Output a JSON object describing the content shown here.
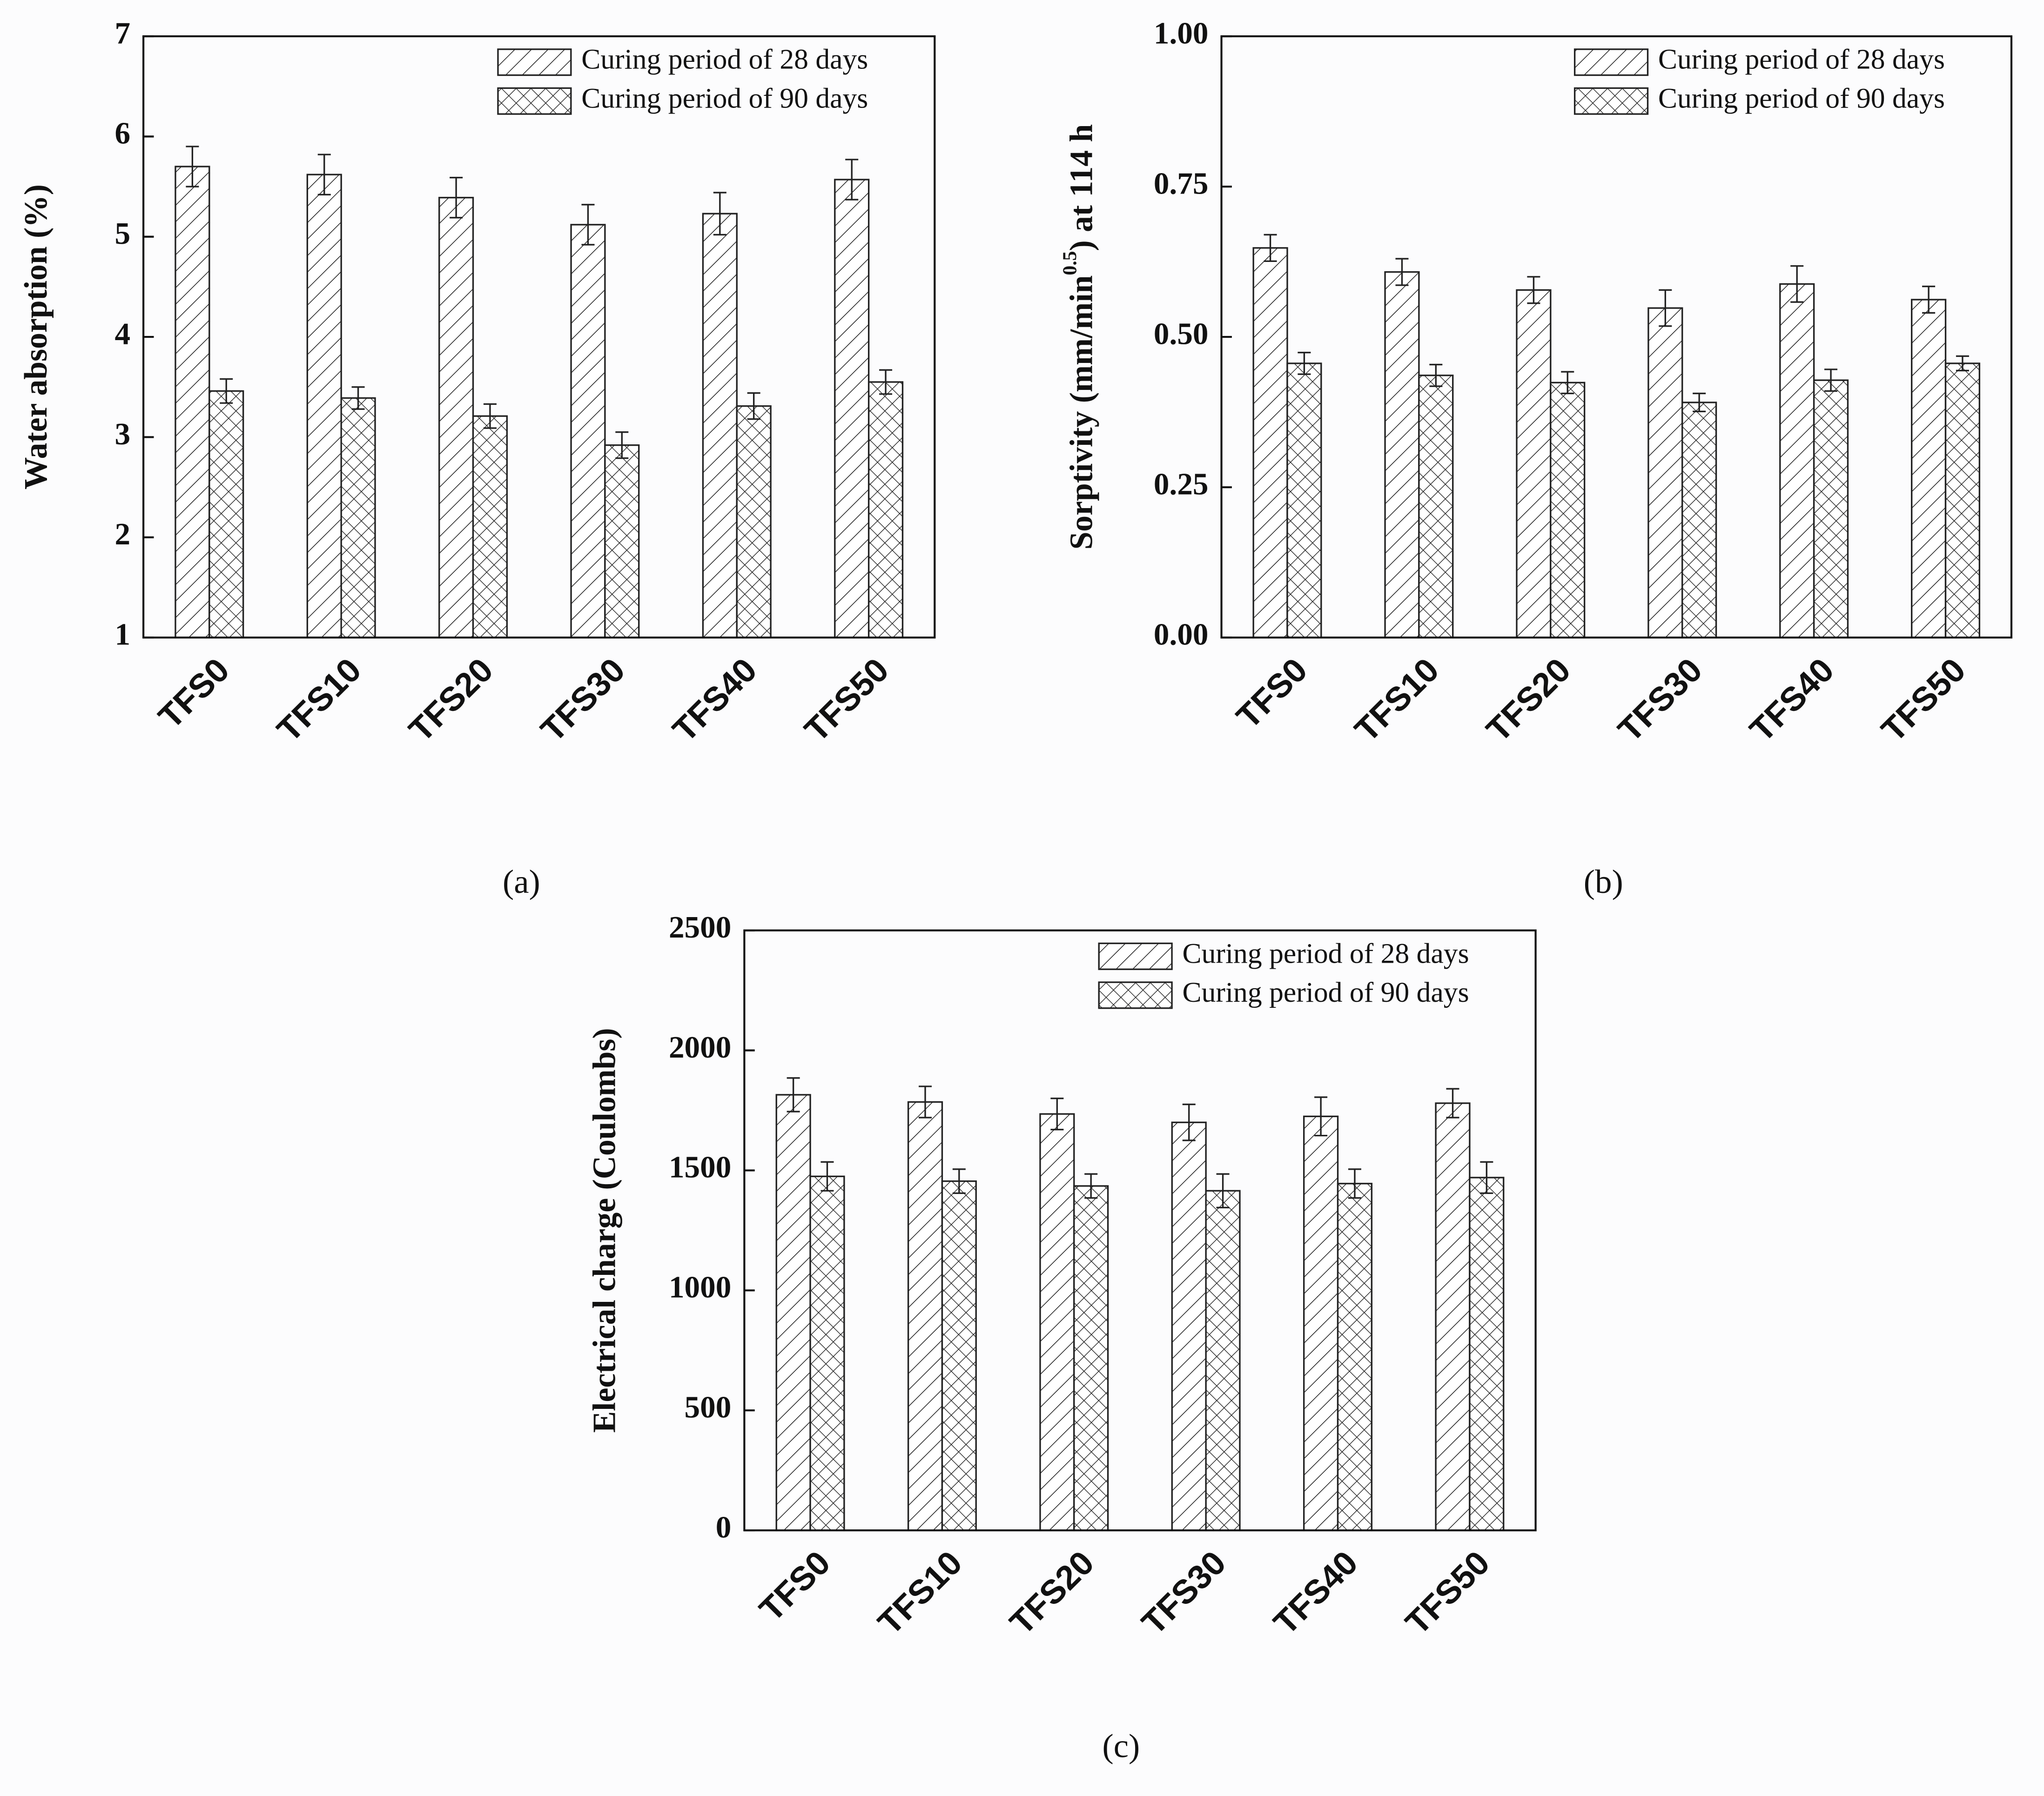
{
  "chart_data": [
    {
      "type": "bar",
      "label": "(a)",
      "ylabel": "Water absorption (%)",
      "categories": [
        "TFS0",
        "TFS10",
        "TFS20",
        "TFS30",
        "TFS40",
        "TFS50"
      ],
      "series": [
        {
          "name": "Curing period of 28 days",
          "pattern": "hatch",
          "color": "#222222",
          "values": [
            5.7,
            5.62,
            5.39,
            5.12,
            5.23,
            5.57
          ],
          "errors": [
            0.2,
            0.2,
            0.2,
            0.2,
            0.21,
            0.2
          ]
        },
        {
          "name": "Curing period of 90 days",
          "pattern": "cross",
          "color": "#222222",
          "values": [
            3.46,
            3.39,
            3.21,
            2.92,
            3.31,
            3.55
          ],
          "errors": [
            0.12,
            0.11,
            0.12,
            0.13,
            0.13,
            0.12
          ]
        }
      ],
      "ylim": [
        1,
        7
      ],
      "yticks": [
        1,
        2,
        3,
        4,
        5,
        6,
        7
      ],
      "legend": "upper right"
    },
    {
      "type": "bar",
      "label": "(b)",
      "ylabel": "Sorptivity (mm/min",
      "ylabel_sup": "0.5",
      "ylabel_end": ") at 114 h",
      "categories": [
        "TFS0",
        "TFS10",
        "TFS20",
        "TFS30",
        "TFS40",
        "TFS50"
      ],
      "series": [
        {
          "name": "Curing period of 28 days",
          "pattern": "hatch",
          "color": "#222222",
          "values": [
            0.648,
            0.608,
            0.578,
            0.548,
            0.588,
            0.562
          ],
          "errors": [
            0.022,
            0.022,
            0.022,
            0.03,
            0.03,
            0.022
          ]
        },
        {
          "name": "Curing period of 90 days",
          "pattern": "cross",
          "color": "#222222",
          "values": [
            0.456,
            0.436,
            0.424,
            0.391,
            0.428,
            0.456
          ],
          "errors": [
            0.018,
            0.018,
            0.018,
            0.015,
            0.018,
            0.012
          ]
        }
      ],
      "ylim": [
        0,
        1
      ],
      "yticks": [
        {
          "value": 0,
          "label": "0.00"
        },
        {
          "value": 0.25,
          "label": "0.25"
        },
        {
          "value": 0.5,
          "label": "0.50"
        },
        {
          "value": 0.75,
          "label": "0.75"
        },
        {
          "value": 1,
          "label": "1.00"
        }
      ],
      "legend": "upper right"
    },
    {
      "type": "bar",
      "label": "(c)",
      "ylabel": "Electrical charge (Coulombs)",
      "categories": [
        "TFS0",
        "TFS10",
        "TFS20",
        "TFS30",
        "TFS40",
        "TFS50"
      ],
      "series": [
        {
          "name": "Curing period of 28 days",
          "pattern": "hatch",
          "color": "#222222",
          "values": [
            1815,
            1785,
            1735,
            1700,
            1725,
            1780
          ],
          "errors": [
            70,
            65,
            65,
            75,
            80,
            60
          ]
        },
        {
          "name": "Curing period of 90 days",
          "pattern": "cross",
          "color": "#222222",
          "values": [
            1475,
            1455,
            1435,
            1415,
            1445,
            1470
          ],
          "errors": [
            60,
            50,
            50,
            70,
            60,
            65
          ]
        }
      ],
      "ylim": [
        0,
        2500
      ],
      "yticks": [
        0,
        500,
        1000,
        1500,
        2000,
        2500
      ],
      "legend": "upper right"
    }
  ]
}
